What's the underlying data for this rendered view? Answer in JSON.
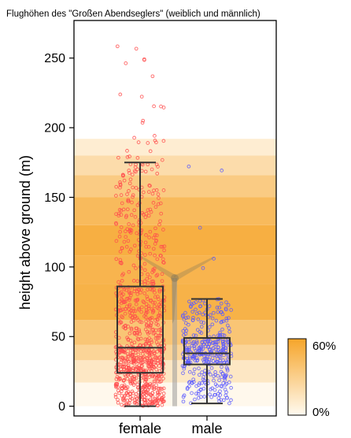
{
  "chart_data": {
    "type": "box",
    "title": "Flughöhen des \"Großen Abendseglers\" (weiblich und männlich)",
    "xlabel": "",
    "ylabel": "height above ground (m)",
    "ylim": [
      -7,
      277
    ],
    "yticks": [
      0,
      50,
      100,
      150,
      200,
      250
    ],
    "categories": [
      "female",
      "male"
    ],
    "series": [
      {
        "name": "female",
        "color": "#ff4d4d",
        "box": {
          "q1": 24,
          "median": 42,
          "q3": 86,
          "whisker_low": 0,
          "whisker_high": 175
        },
        "observed_max": 260,
        "n_points_approx": 1700
      },
      {
        "name": "male",
        "color": "#5a5aff",
        "box": {
          "q1": 30,
          "median": 38,
          "q3": 49,
          "whisker_low": 2,
          "whisker_high": 77
        },
        "observed_max": 179,
        "n_points_approx": 700
      }
    ],
    "background_density_bands": {
      "description_colorscale": [
        "#fffaf0",
        "#f6a52a"
      ],
      "legend_labels": {
        "min": "0%",
        "max": "60%"
      },
      "bands": [
        {
          "from": 0,
          "to": 17,
          "level": 0.02
        },
        {
          "from": 17,
          "to": 33,
          "level": 0.22
        },
        {
          "from": 33,
          "to": 44,
          "level": 0.45
        },
        {
          "from": 44,
          "to": 62,
          "level": 0.62
        },
        {
          "from": 62,
          "to": 88,
          "level": 0.85
        },
        {
          "from": 88,
          "to": 108,
          "level": 0.82
        },
        {
          "from": 108,
          "to": 130,
          "level": 0.88
        },
        {
          "from": 130,
          "to": 150,
          "level": 0.75
        },
        {
          "from": 150,
          "to": 166,
          "level": 0.55
        },
        {
          "from": 166,
          "to": 180,
          "level": 0.35
        },
        {
          "from": 180,
          "to": 192,
          "level": 0.15
        }
      ]
    },
    "decoration": "wind-turbine-silhouette",
    "grid": false,
    "legend_position": "bottom-right"
  }
}
